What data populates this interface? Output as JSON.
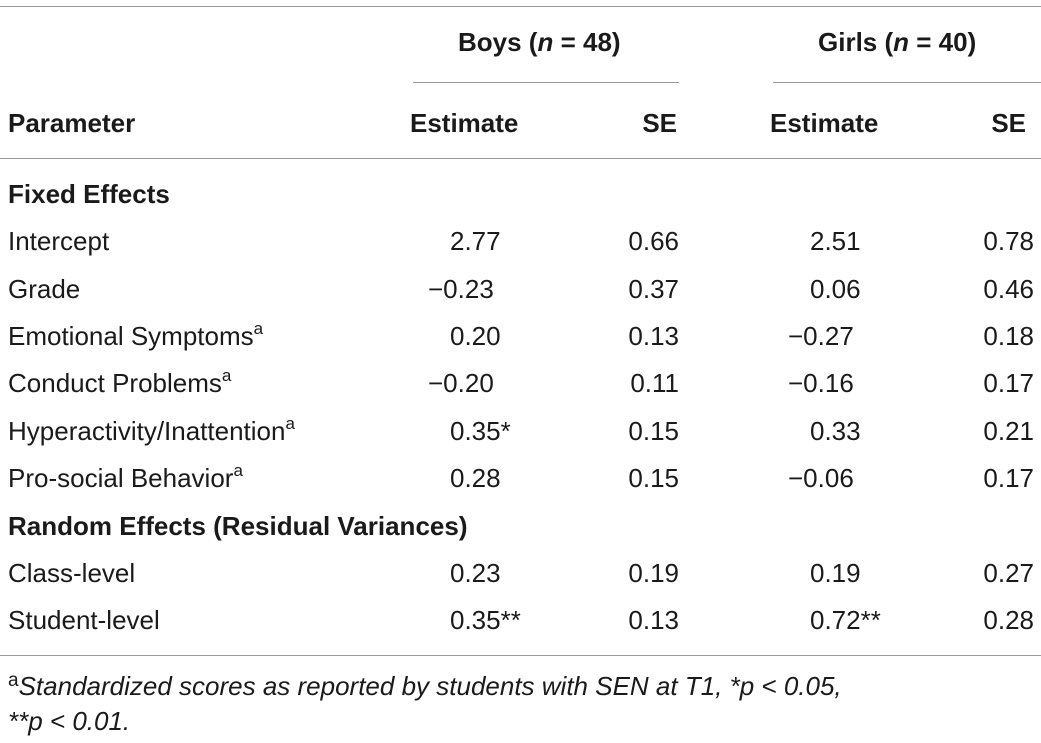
{
  "table": {
    "group_headers": {
      "boys_prefix": "Boys (",
      "boys_n": "n",
      "boys_suffix": " = 48)",
      "girls_prefix": "Girls (",
      "girls_n": "n",
      "girls_suffix": " = 40)"
    },
    "column_headers": {
      "parameter": "Parameter",
      "boys_estimate": "Estimate",
      "boys_se": "SE",
      "girls_estimate": "Estimate",
      "girls_se": "SE"
    },
    "sections": [
      {
        "title": "Fixed Effects",
        "rows": [
          {
            "label": "Intercept",
            "sup": "",
            "boys_est": "2.77",
            "boys_se": "0.66",
            "girls_est": "2.51",
            "girls_se": "0.78"
          },
          {
            "label": "Grade",
            "sup": "",
            "boys_est": "−0.23",
            "boys_se": "0.37",
            "girls_est": "0.06",
            "girls_se": "0.46"
          },
          {
            "label": "Emotional Symptoms",
            "sup": "a",
            "boys_est": "0.20",
            "boys_se": "0.13",
            "girls_est": "−0.27",
            "girls_se": "0.18"
          },
          {
            "label": "Conduct Problems",
            "sup": "a",
            "boys_est": "−0.20",
            "boys_se": "0.11",
            "girls_est": "−0.16",
            "girls_se": "0.17"
          },
          {
            "label": "Hyperactivity/Inattention",
            "sup": "a",
            "boys_est": "0.35*",
            "boys_se": "0.15",
            "girls_est": "0.33",
            "girls_se": "0.21"
          },
          {
            "label": "Pro-social Behavior",
            "sup": "a",
            "boys_est": "0.28",
            "boys_se": "0.15",
            "girls_est": "−0.06",
            "girls_se": "0.17"
          }
        ]
      },
      {
        "title": "Random Effects (Residual Variances)",
        "rows": [
          {
            "label": "Class-level",
            "sup": "",
            "boys_est": "0.23",
            "boys_se": "0.19",
            "girls_est": "0.19",
            "girls_se": "0.27"
          },
          {
            "label": "Student-level",
            "sup": "",
            "boys_est": "0.35**",
            "boys_se": "0.13",
            "girls_est": "0.72**",
            "girls_se": "0.28"
          }
        ]
      }
    ],
    "footnote": {
      "marker": "a",
      "line1": "Standardized scores as reported by students with SEN at T1, *p < 0.05,",
      "line2": "**p < 0.01."
    }
  }
}
